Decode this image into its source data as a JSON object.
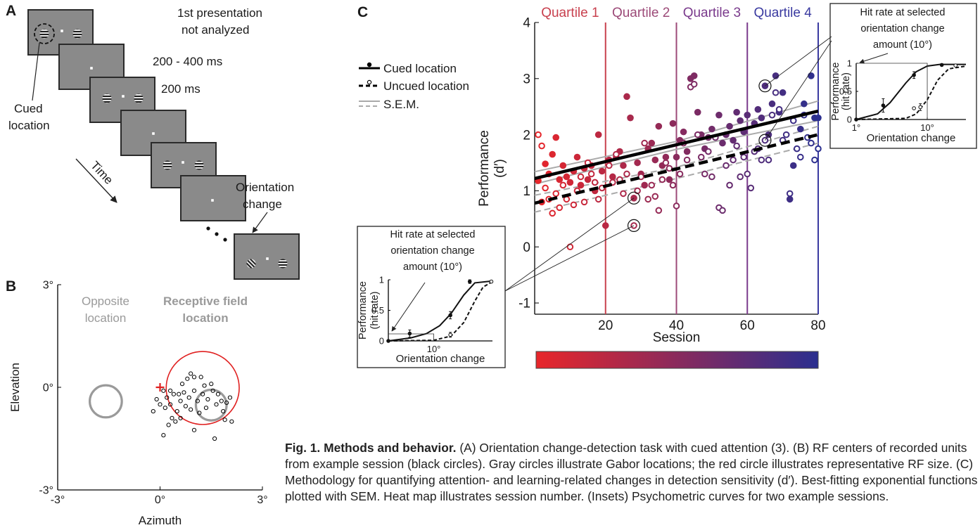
{
  "panel_a": {
    "label": "A",
    "texts": {
      "first": [
        "1st presentation",
        "not analyzed"
      ],
      "delay": "200 - 400 ms",
      "stim": "200 ms",
      "change": [
        "Orientation",
        "change"
      ],
      "cue": [
        "Cued",
        "location"
      ],
      "time": "Time"
    }
  },
  "chart_data": [
    {
      "type": "scatter",
      "panel": "B",
      "xlabel": "Azimuth",
      "ylabel": "Elevation",
      "xlim": [
        -3,
        3
      ],
      "ylim": [
        -3,
        3
      ],
      "xticks": [
        {
          "value": -3,
          "label": "-3°"
        },
        {
          "value": 0,
          "label": "0°"
        },
        {
          "value": 3,
          "label": "3°"
        }
      ],
      "yticks": [
        {
          "value": -3,
          "label": "-3°"
        },
        {
          "value": 0,
          "label": "0°"
        },
        {
          "value": 3,
          "label": "3°"
        }
      ],
      "opposite_label": [
        "Opposite",
        "location"
      ],
      "rf_label": [
        "Receptive field",
        "location"
      ],
      "circles": [
        {
          "x": -1.59,
          "y": -0.41,
          "r": 0.47,
          "color": "#9a9a9a"
        },
        {
          "x": 1.25,
          "y": -0.02,
          "r": 1.07,
          "color": "#e02020"
        },
        {
          "x": 1.5,
          "y": -0.52,
          "r": 0.45,
          "color": "#9a9a9a"
        }
      ],
      "marker": {
        "x": 0,
        "y": 0,
        "color": "#e02020"
      },
      "color": "#000000",
      "x": [
        0.1,
        0.2,
        0.3,
        0.15,
        0.4,
        0.5,
        0.35,
        0.25,
        0.45,
        0.1,
        0.6,
        0.7,
        0.8,
        0.9,
        1.0,
        0.75,
        0.9,
        1.0,
        1.1,
        1.2,
        1.25,
        1.35,
        1.4,
        1.5,
        1.55,
        1.65,
        1.7,
        1.8,
        1.85,
        1.95,
        2.05,
        1.9,
        2.1,
        1.6,
        1.0,
        0.55,
        -0.1,
        -0.2,
        0.0,
        0.3,
        0.6,
        1.3,
        1.15,
        0.85,
        0.65
      ],
      "y": [
        -0.1,
        -0.3,
        -0.5,
        -0.6,
        -0.2,
        -0.7,
        -0.9,
        -1.1,
        -1.0,
        -1.4,
        -0.4,
        -0.15,
        0.25,
        0.4,
        0.3,
        -0.55,
        -0.65,
        -0.1,
        -0.4,
        0.3,
        -0.2,
        -0.6,
        -0.35,
        0.1,
        -0.1,
        -0.5,
        -0.2,
        -0.4,
        -0.7,
        -0.45,
        -0.3,
        -0.95,
        -1.0,
        -1.5,
        -1.25,
        -0.2,
        -0.35,
        -0.7,
        -0.5,
        -0.1,
        -0.9,
        0.05,
        -0.75,
        -0.3,
        0.1
      ]
    },
    {
      "type": "scatter",
      "panel": "C",
      "xlabel": "Session",
      "ylabel": [
        "Performance",
        "(d′)"
      ],
      "xlim": [
        0,
        80
      ],
      "ylim": [
        -1.2,
        4
      ],
      "xticks": [
        20,
        40,
        60,
        80
      ],
      "yticks": [
        -1,
        0,
        1,
        2,
        3,
        4
      ],
      "colormap": [
        "#e8262a",
        "#2b2f8f"
      ],
      "quartiles": [
        {
          "label": "Quartile 1",
          "end": 20,
          "color": "#c8404e"
        },
        {
          "label": "Quartile 2",
          "end": 40,
          "color": "#9c4a78"
        },
        {
          "label": "Quartile 3",
          "end": 60,
          "color": "#7a3a8c"
        },
        {
          "label": "Quartile 4",
          "end": 80,
          "color": "#3a3aa0"
        }
      ],
      "series": [
        {
          "name": "Cued location",
          "color": "#000000",
          "filled": true,
          "dash": false,
          "x": [
            1,
            2,
            3,
            4,
            5,
            6,
            7,
            8,
            9,
            10,
            11,
            12,
            13,
            14,
            15,
            16,
            17,
            18,
            19,
            20,
            21,
            22,
            23,
            24,
            25,
            26,
            27,
            28,
            29,
            30,
            31,
            32,
            33,
            34,
            35,
            36,
            37,
            38,
            39,
            40,
            41,
            42,
            43,
            44,
            45,
            46,
            47,
            48,
            49,
            50,
            52,
            53,
            54,
            55,
            56,
            57,
            58,
            59,
            60,
            62,
            63,
            64,
            65,
            66,
            67,
            68,
            69,
            70,
            72,
            73,
            75,
            76,
            78,
            79,
            80
          ],
          "y": [
            1.18,
            0.8,
            1.48,
            1.3,
            1.65,
            1.95,
            1.2,
            1.45,
            1.25,
            1.15,
            1.35,
            1.6,
            1.1,
            1.4,
            1.2,
            1.45,
            1.0,
            2.0,
            1.35,
            0.38,
            1.55,
            1.25,
            1.6,
            1.7,
            1.45,
            2.68,
            2.3,
            0.87,
            1.5,
            1.3,
            1.1,
            1.75,
            1.85,
            1.55,
            2.15,
            1.45,
            1.6,
            1.2,
            2.2,
            1.6,
            1.9,
            2.05,
            1.7,
            3.0,
            3.05,
            2.4,
            2.0,
            1.75,
            1.95,
            2.1,
            2.35,
            1.85,
            2.0,
            2.15,
            1.9,
            2.4,
            2.25,
            2.05,
            2.35,
            2.2,
            2.45,
            2.3,
            2.87,
            2.0,
            2.55,
            3.05,
            2.4,
            2.75,
            0.85,
            1.45,
            2.1,
            2.55,
            3.05,
            2.3,
            2.3
          ],
          "fit": {
            "x": [
              0,
              80
            ],
            "y": [
              1.22,
              2.42
            ]
          }
        },
        {
          "name": "Uncued location",
          "color": "#000000",
          "filled": false,
          "dash": true,
          "x": [
            1,
            2,
            3,
            4,
            5,
            6,
            7,
            8,
            9,
            10,
            11,
            12,
            13,
            14,
            15,
            16,
            17,
            18,
            19,
            21,
            22,
            23,
            24,
            25,
            26,
            28,
            29,
            30,
            31,
            32,
            33,
            34,
            35,
            36,
            37,
            38,
            39,
            40,
            41,
            42,
            43,
            44,
            45,
            46,
            47,
            48,
            49,
            50,
            51,
            52,
            53,
            54,
            55,
            56,
            57,
            58,
            59,
            60,
            61,
            62,
            63,
            64,
            65,
            66,
            67,
            68,
            69,
            70,
            71,
            72,
            73,
            74,
            75,
            76,
            77,
            78,
            79,
            80
          ],
          "y": [
            2.0,
            1.8,
            1.05,
            0.85,
            0.6,
            0.95,
            0.7,
            1.1,
            0.85,
            0.0,
            0.75,
            1.0,
            1.25,
            0.8,
            1.5,
            1.3,
            1.15,
            0.85,
            1.05,
            1.45,
            1.15,
            1.65,
            1.2,
            0.95,
            1.3,
            0.38,
            1.0,
            1.25,
            1.85,
            0.85,
            1.1,
            0.9,
            0.65,
            1.2,
            1.5,
            1.4,
            1.1,
            0.73,
            1.3,
            1.85,
            1.55,
            2.85,
            2.9,
            2.0,
            1.6,
            1.3,
            1.7,
            1.25,
            1.95,
            0.7,
            0.65,
            1.45,
            1.1,
            1.55,
            1.8,
            1.25,
            1.6,
            1.3,
            1.05,
            1.7,
            1.75,
            1.55,
            1.9,
            1.55,
            2.35,
            2.75,
            2.45,
            1.9,
            2.0,
            0.95,
            2.25,
            1.75,
            1.6,
            2.35,
            1.95,
            1.85,
            1.55,
            1.75
          ],
          "fit": {
            "x": [
              0,
              80
            ],
            "y": [
              0.78,
              2.0
            ]
          }
        }
      ],
      "sem": {
        "name": "S.E.M.",
        "color": "#aaaaaa",
        "bands": [
          {
            "x": [
              0,
              40,
              80
            ],
            "y": [
              1.34,
              1.88,
              2.6
            ],
            "dash": false
          },
          {
            "x": [
              0,
              40,
              80
            ],
            "y": [
              1.12,
              1.74,
              2.25
            ],
            "dash": false
          },
          {
            "x": [
              0,
              40,
              80
            ],
            "y": [
              0.92,
              1.42,
              2.15
            ],
            "dash": true
          },
          {
            "x": [
              0,
              40,
              80
            ],
            "y": [
              0.62,
              1.22,
              1.85
            ],
            "dash": true
          }
        ]
      }
    },
    {
      "type": "line",
      "title": [
        "Hit rate at selected",
        "orientation change",
        "amount (10°)"
      ],
      "ylabel": [
        "Performance",
        "(hit rate)"
      ],
      "xlabel": "Orientation change",
      "log_x": true,
      "xlim": [
        1,
        35
      ],
      "ylim": [
        0,
        1
      ],
      "yticks": [
        0,
        0.5,
        1
      ],
      "xticks": [
        {
          "value": 1,
          "label": "1°"
        },
        {
          "value": 10,
          "label": "10°"
        }
      ],
      "curves": [
        {
          "x": [
            1,
            2,
            3,
            5,
            7,
            10,
            15,
            35
          ],
          "y": [
            0,
            0.1,
            0.3,
            0.65,
            0.85,
            0.95,
            0.98,
            0.98
          ],
          "dash": false
        },
        {
          "x": [
            1,
            5,
            7,
            10,
            14,
            20,
            35
          ],
          "y": [
            0,
            0.02,
            0.1,
            0.35,
            0.7,
            0.9,
            0.95
          ],
          "dash": true
        }
      ],
      "points": [
        {
          "filled": true,
          "x": [
            1,
            2.4,
            6.5,
            16
          ],
          "y": [
            0,
            0.25,
            0.79,
            0.97
          ],
          "errors": [
            0,
            0.12,
            0.06,
            0.02
          ]
        },
        {
          "filled": false,
          "x": [
            6.5,
            8,
            25
          ],
          "y": [
            0.2,
            0.22,
            0.96
          ],
          "errors": [
            0,
            0.06,
            0.02
          ]
        }
      ]
    },
    {
      "type": "line",
      "title": [
        "Hit rate at selected",
        "orientation change",
        "amount (10°)"
      ],
      "ylabel": [
        "Performance",
        "(hit rate)"
      ],
      "xlabel": "Orientation change",
      "log_x": true,
      "xlim": [
        2.5,
        60
      ],
      "ylim": [
        0,
        1
      ],
      "yticks": [
        0,
        0.5,
        1
      ],
      "xticks": [
        {
          "value": 10,
          "label": "10°"
        }
      ],
      "curves": [
        {
          "x": [
            2.5,
            5,
            8,
            12,
            17,
            25,
            35,
            60
          ],
          "y": [
            0,
            0.05,
            0.12,
            0.25,
            0.45,
            0.75,
            0.95,
            0.98
          ],
          "dash": false
        },
        {
          "x": [
            2.5,
            10,
            17,
            25,
            35,
            45,
            60
          ],
          "y": [
            0,
            0.01,
            0.08,
            0.3,
            0.65,
            0.88,
            0.97
          ],
          "dash": true
        }
      ],
      "points": [
        {
          "filled": true,
          "x": [
            2.5,
            4.8,
            16.6,
            30
          ],
          "y": [
            0,
            0.12,
            0.42,
            0.97
          ],
          "errors": [
            0,
            0.06,
            0.06,
            0.03
          ]
        },
        {
          "filled": false,
          "x": [
            16.6,
            58
          ],
          "y": [
            0.1,
            0.97
          ],
          "errors": [
            0.04,
            0.02
          ]
        }
      ]
    }
  ],
  "caption": {
    "title": "Fig. 1. Methods and behavior.",
    "body": "(A) Orientation change-detection task with cued attention (3). (B) RF centers of recorded units from example session (black circles). Gray circles illustrate Gabor locations; the red circle illustrates representative RF size. (C) Methodology for quantifying attention- and learning-related changes in detection sensitivity (d′). Best-fitting exponential functions plotted with SEM. Heat map illustrates session number. (Insets) Psychometric curves for two example sessions."
  }
}
